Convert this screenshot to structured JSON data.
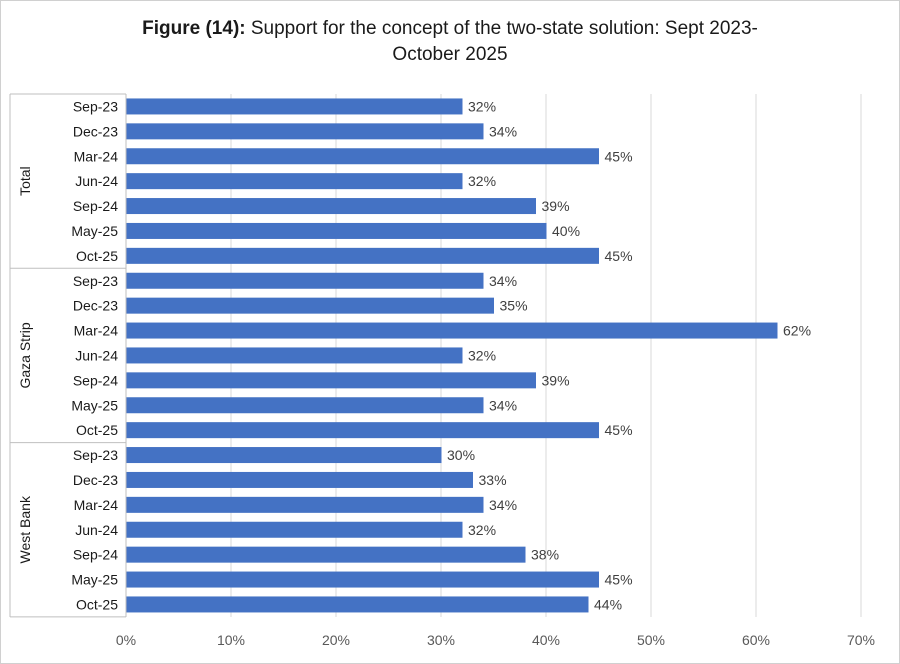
{
  "chart_data": {
    "type": "bar",
    "orientation": "horizontal",
    "title_bold": "Figure (14):",
    "title_line1": "Support for the concept of the two-state solution: Sept 2023-",
    "title_line2": "October 2025",
    "xlabel": "",
    "ylabel": "",
    "xlim": [
      0,
      70
    ],
    "x_ticks": [
      "0%",
      "10%",
      "20%",
      "30%",
      "40%",
      "50%",
      "60%",
      "70%"
    ],
    "grid": true,
    "bar_color": "#4472c4",
    "groups": [
      {
        "name": "Total",
        "categories": [
          "Sep-23",
          "Dec-23",
          "Mar-24",
          "Jun-24",
          "Sep-24",
          "May-25",
          "Oct-25"
        ],
        "values": [
          32,
          34,
          45,
          32,
          39,
          40,
          45
        ],
        "labels": [
          "32%",
          "34%",
          "45%",
          "32%",
          "39%",
          "40%",
          "45%"
        ]
      },
      {
        "name": "Gaza Strip",
        "categories": [
          "Sep-23",
          "Dec-23",
          "Mar-24",
          "Jun-24",
          "Sep-24",
          "May-25",
          "Oct-25"
        ],
        "values": [
          34,
          35,
          62,
          32,
          39,
          34,
          45
        ],
        "labels": [
          "34%",
          "35%",
          "62%",
          "32%",
          "39%",
          "34%",
          "45%"
        ]
      },
      {
        "name": "West Bank",
        "categories": [
          "Sep-23",
          "Dec-23",
          "Mar-24",
          "Jun-24",
          "Sep-24",
          "May-25",
          "Oct-25"
        ],
        "values": [
          30,
          33,
          34,
          32,
          38,
          45,
          44
        ],
        "labels": [
          "30%",
          "33%",
          "34%",
          "32%",
          "38%",
          "45%",
          "44%"
        ]
      }
    ]
  }
}
